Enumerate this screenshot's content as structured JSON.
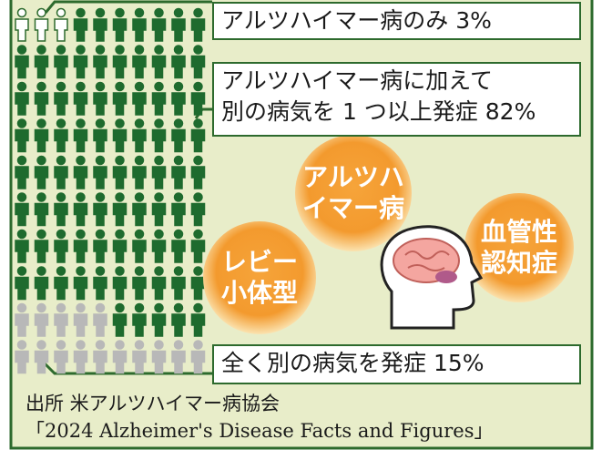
{
  "chart_data": {
    "type": "pictogram",
    "series": [
      {
        "name": "アルツハイマー病のみ",
        "value": 3,
        "value_labels": "3%",
        "color": "#ffffff"
      },
      {
        "name": "アルツハイマー病に加えて\n別の病気を 1 つ以上発症",
        "value": 82,
        "value_labels": "82%",
        "color": "#1e6b2e"
      },
      {
        "name": "全く別の病気を発症",
        "value": 15,
        "value_labels": "15%",
        "color": "#b8b8b8"
      }
    ],
    "bubbles": [
      "アルツハ\nイマー病",
      "血管性\n認知症",
      "レビー\n小体型"
    ],
    "source": [
      "出所 米アルツハイマー病協会",
      "「2024 Alzheimer's Disease Facts and Figures」"
    ]
  }
}
